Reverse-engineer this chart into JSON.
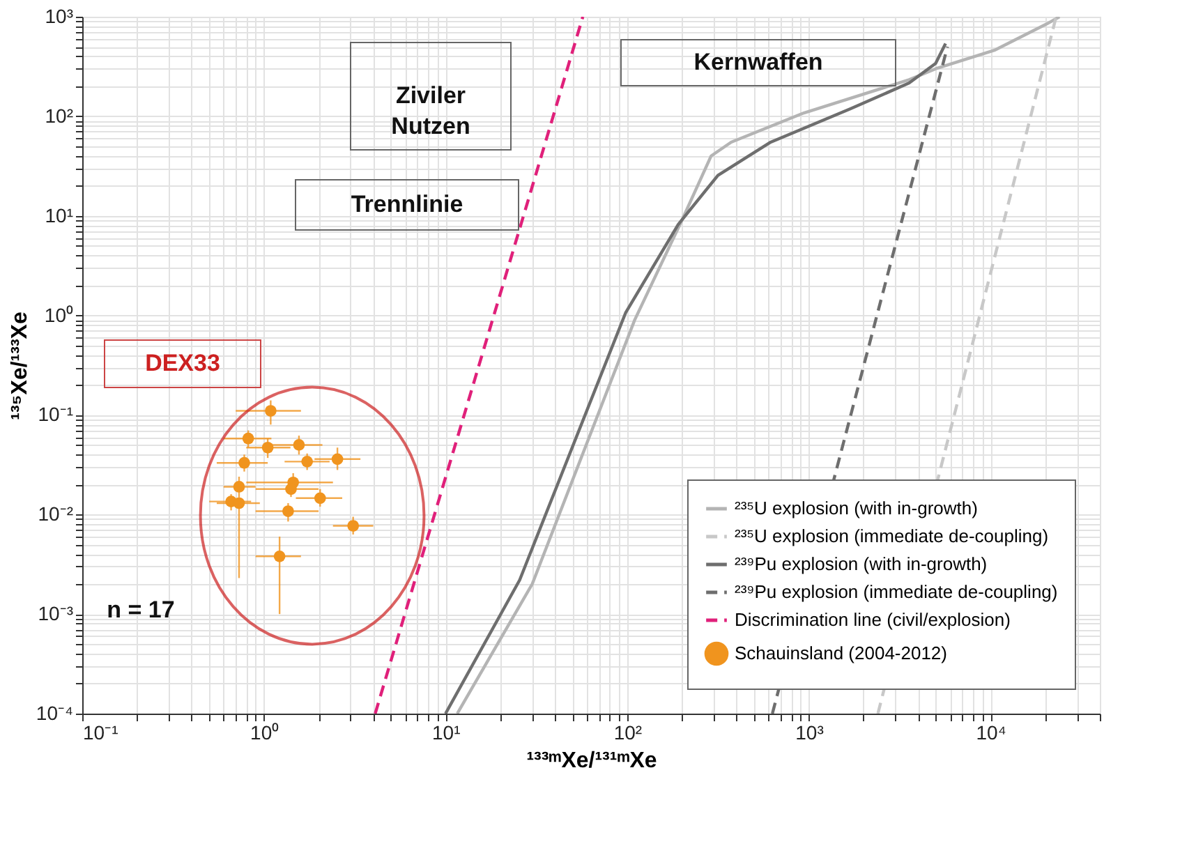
{
  "chart_data": {
    "type": "line",
    "xlabel": "¹³³ᵐXe/¹³¹ᵐXe",
    "ylabel": "¹³⁵Xe/¹³³Xe",
    "log": "xy",
    "grid": true,
    "legend": "bottom right",
    "xlim": [
      0.1,
      40000
    ],
    "ylim": [
      0.0001,
      1000
    ],
    "xticks": [
      {
        "value": 0.1,
        "label": "10⁻¹"
      },
      {
        "value": 0.2,
        "label": null
      },
      {
        "value": 0.3,
        "label": null
      },
      {
        "value": 0.4,
        "label": null
      },
      {
        "value": 0.5,
        "label": null
      },
      {
        "value": 0.6,
        "label": null
      },
      {
        "value": 0.7,
        "label": null
      },
      {
        "value": 0.8,
        "label": null
      },
      {
        "value": 0.9,
        "label": null
      },
      {
        "value": 1,
        "label": "10⁰"
      },
      {
        "value": 2,
        "label": null
      },
      {
        "value": 3,
        "label": null
      },
      {
        "value": 4,
        "label": null
      },
      {
        "value": 5,
        "label": null
      },
      {
        "value": 6,
        "label": null
      },
      {
        "value": 7,
        "label": null
      },
      {
        "value": 8,
        "label": null
      },
      {
        "value": 9,
        "label": null
      },
      {
        "value": 10,
        "label": "10¹"
      },
      {
        "value": 20,
        "label": null
      },
      {
        "value": 30,
        "label": null
      },
      {
        "value": 40,
        "label": null
      },
      {
        "value": 50,
        "label": null
      },
      {
        "value": 60,
        "label": null
      },
      {
        "value": 70,
        "label": null
      },
      {
        "value": 80,
        "label": null
      },
      {
        "value": 90,
        "label": null
      },
      {
        "value": 100,
        "label": "10²"
      },
      {
        "value": 200,
        "label": null
      },
      {
        "value": 300,
        "label": null
      },
      {
        "value": 400,
        "label": null
      },
      {
        "value": 500,
        "label": null
      },
      {
        "value": 600,
        "label": null
      },
      {
        "value": 700,
        "label": null
      },
      {
        "value": 800,
        "label": null
      },
      {
        "value": 900,
        "label": null
      },
      {
        "value": 1000,
        "label": "10³"
      },
      {
        "value": 2000,
        "label": null
      },
      {
        "value": 3000,
        "label": null
      },
      {
        "value": 4000,
        "label": null
      },
      {
        "value": 5000,
        "label": null
      },
      {
        "value": 6000,
        "label": null
      },
      {
        "value": 7000,
        "label": null
      },
      {
        "value": 8000,
        "label": null
      },
      {
        "value": 9000,
        "label": null
      },
      {
        "value": 10000,
        "label": "10⁴"
      },
      {
        "value": 20000,
        "label": null
      },
      {
        "value": 30000,
        "label": null
      },
      {
        "value": 40000,
        "label": null
      }
    ],
    "yticks": [
      {
        "value": 0.0001,
        "label": "10⁻⁴"
      },
      {
        "value": 0.0002,
        "label": null
      },
      {
        "value": 0.0003,
        "label": null
      },
      {
        "value": 0.0004,
        "label": null
      },
      {
        "value": 0.0005,
        "label": null
      },
      {
        "value": 0.0006,
        "label": null
      },
      {
        "value": 0.0007,
        "label": null
      },
      {
        "value": 0.0008,
        "label": null
      },
      {
        "value": 0.0009,
        "label": null
      },
      {
        "value": 0.001,
        "label": "10⁻³"
      },
      {
        "value": 0.002,
        "label": null
      },
      {
        "value": 0.003,
        "label": null
      },
      {
        "value": 0.004,
        "label": null
      },
      {
        "value": 0.005,
        "label": null
      },
      {
        "value": 0.006,
        "label": null
      },
      {
        "value": 0.007,
        "label": null
      },
      {
        "value": 0.008,
        "label": null
      },
      {
        "value": 0.009,
        "label": null
      },
      {
        "value": 0.01,
        "label": "10⁻²"
      },
      {
        "value": 0.02,
        "label": null
      },
      {
        "value": 0.03,
        "label": null
      },
      {
        "value": 0.04,
        "label": null
      },
      {
        "value": 0.05,
        "label": null
      },
      {
        "value": 0.06,
        "label": null
      },
      {
        "value": 0.07,
        "label": null
      },
      {
        "value": 0.08,
        "label": null
      },
      {
        "value": 0.09,
        "label": null
      },
      {
        "value": 0.1,
        "label": "10⁻¹"
      },
      {
        "value": 0.2,
        "label": null
      },
      {
        "value": 0.3,
        "label": null
      },
      {
        "value": 0.4,
        "label": null
      },
      {
        "value": 0.5,
        "label": null
      },
      {
        "value": 0.6,
        "label": null
      },
      {
        "value": 0.7,
        "label": null
      },
      {
        "value": 0.8,
        "label": null
      },
      {
        "value": 0.9,
        "label": null
      },
      {
        "value": 1,
        "label": "10⁰"
      },
      {
        "value": 2,
        "label": null
      },
      {
        "value": 3,
        "label": null
      },
      {
        "value": 4,
        "label": null
      },
      {
        "value": 5,
        "label": null
      },
      {
        "value": 6,
        "label": null
      },
      {
        "value": 7,
        "label": null
      },
      {
        "value": 8,
        "label": null
      },
      {
        "value": 9,
        "label": null
      },
      {
        "value": 10,
        "label": "10¹"
      },
      {
        "value": 20,
        "label": null
      },
      {
        "value": 30,
        "label": null
      },
      {
        "value": 40,
        "label": null
      },
      {
        "value": 50,
        "label": null
      },
      {
        "value": 60,
        "label": null
      },
      {
        "value": 70,
        "label": null
      },
      {
        "value": 80,
        "label": null
      },
      {
        "value": 90,
        "label": null
      },
      {
        "value": 100,
        "label": "10²"
      },
      {
        "value": 200,
        "label": null
      },
      {
        "value": 300,
        "label": null
      },
      {
        "value": 400,
        "label": null
      },
      {
        "value": 500,
        "label": null
      },
      {
        "value": 600,
        "label": null
      },
      {
        "value": 700,
        "label": null
      },
      {
        "value": 800,
        "label": null
      },
      {
        "value": 900,
        "label": null
      },
      {
        "value": 1000,
        "label": "10³"
      }
    ],
    "series": [
      {
        "name": "²³⁵U explosion (with in-growth)",
        "line_style": "solid",
        "color": "#b4b4b4",
        "x": [
          11.6,
          30,
          110,
          200,
          290,
          374,
          940,
          3570,
          4990,
          10500,
          20500,
          24000
        ],
        "values": [
          0.0001,
          0.002,
          0.9,
          9,
          40,
          55,
          108,
          233,
          300,
          460,
          850,
          1000
        ]
      },
      {
        "name": "²³⁵U explosion (immediate de-coupling)",
        "line_style": "dashed",
        "color": "#c8c8c8",
        "x": [
          2400,
          23000
        ],
        "values": [
          0.0001,
          1000
        ]
      },
      {
        "name": "²³⁹Pu explosion (with in-growth)",
        "line_style": "solid",
        "color": "#6e6e6e",
        "x": [
          10,
          25.6,
          98,
          191,
          316,
          617,
          1680,
          3570,
          4990,
          5660
        ],
        "values": [
          0.0001,
          0.0022,
          1.06,
          8.2,
          25.5,
          55,
          118,
          216,
          340,
          537
        ]
      },
      {
        "name": "²³⁹Pu explosion (immediate de-coupling)",
        "line_style": "dashed",
        "color": "#6e6e6e",
        "x": [
          630,
          5800
        ],
        "values": [
          0.0001,
          500
        ]
      },
      {
        "name": "Discrimination line (civil/explosion)",
        "line_style": "dashed",
        "color": "#e0207a",
        "x": [
          4.1,
          57
        ],
        "values": [
          0.0001,
          1000
        ]
      },
      {
        "name": "Schauinsland (2004-2012)",
        "type": "scatter",
        "marker": "circle",
        "color": "#f0941e",
        "x": [
          1.09,
          0.82,
          1.05,
          1.56,
          0.78,
          1.73,
          2.54,
          0.73,
          1.45,
          1.41,
          0.66,
          0.73,
          2.04,
          1.36,
          3.1,
          1.22
        ],
        "values": [
          0.11,
          0.058,
          0.047,
          0.05,
          0.033,
          0.034,
          0.036,
          0.019,
          0.021,
          0.018,
          0.0135,
          0.013,
          0.0146,
          0.0108,
          0.0077,
          0.0038
        ],
        "errors": [
          [
            0.08,
            0.14
          ],
          [
            0.047,
            0.07
          ],
          [
            0.037,
            0.058
          ],
          [
            0.04,
            0.062
          ],
          [
            0.027,
            0.04
          ],
          [
            0.028,
            0.041
          ],
          [
            0.028,
            0.047
          ],
          [
            0.015,
            0.024
          ],
          [
            0.017,
            0.026
          ],
          [
            0.015,
            0.022
          ],
          [
            0.011,
            0.016
          ],
          [
            0.0023,
            0.015
          ],
          [
            0.012,
            0.018
          ],
          [
            0.0085,
            0.013
          ],
          [
            0.0063,
            0.0095
          ],
          [
            0.001,
            0.006
          ]
        ],
        "xerrors": [
          [
            0.7,
            1.6
          ],
          [
            0.6,
            1.1
          ],
          [
            0.8,
            1.4
          ],
          [
            1.1,
            2.1
          ],
          [
            0.55,
            1.05
          ],
          [
            1.3,
            2.3
          ],
          [
            1.9,
            3.4
          ],
          [
            0.6,
            0.9
          ],
          [
            0.8,
            2.4
          ],
          [
            0.9,
            2.0
          ],
          [
            0.5,
            0.85
          ],
          [
            0.55,
            0.95
          ],
          [
            1.5,
            2.7
          ],
          [
            0.9,
            2.0
          ],
          [
            2.4,
            4.0
          ],
          [
            0.9,
            1.6
          ]
        ]
      }
    ],
    "annotations": [
      "Ziviler\nNutzen",
      "Kernwaffen",
      "Trennlinie",
      "DEX33",
      "n = 17"
    ]
  }
}
